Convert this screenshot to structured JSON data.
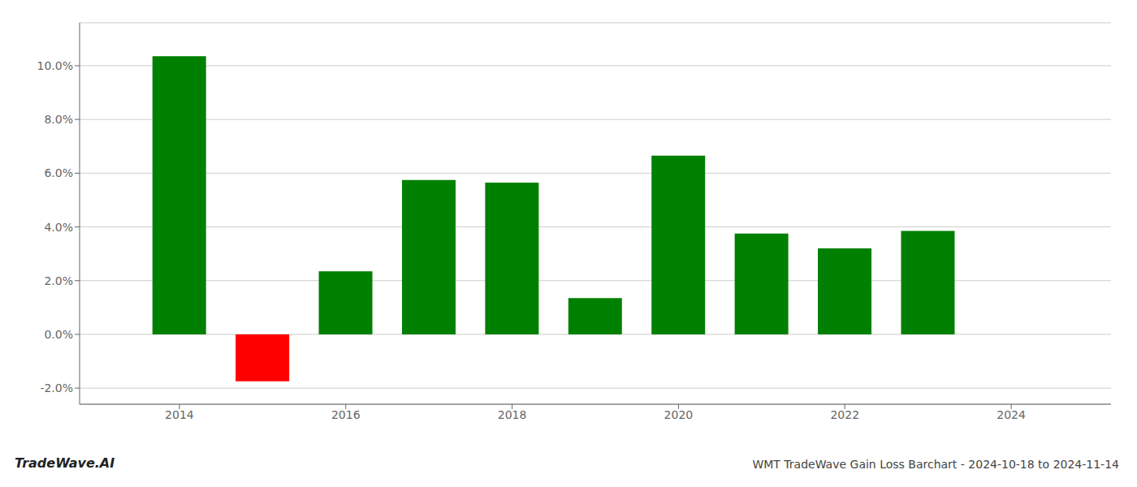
{
  "chart_data": {
    "type": "bar",
    "title": "WMT TradeWave Gain Loss Barchart - 2024-10-18 to 2024-11-14",
    "annotations": [
      "TradeWave.AI"
    ],
    "x": [
      2014,
      2015,
      2016,
      2017,
      2018,
      2019,
      2020,
      2021,
      2022,
      2023
    ],
    "values": [
      0.1035,
      -0.0175,
      0.0235,
      0.0575,
      0.0565,
      0.0135,
      0.0665,
      0.0375,
      0.032,
      0.0385
    ],
    "colors": [
      "#008000",
      "#ff0000",
      "#008000",
      "#008000",
      "#008000",
      "#008000",
      "#008000",
      "#008000",
      "#008000",
      "#008000"
    ],
    "xlim": [
      2012.8,
      2025.2
    ],
    "xticks": [
      2014,
      2016,
      2018,
      2020,
      2022,
      2024
    ],
    "ylim": [
      -0.026,
      0.116
    ],
    "yticks": [
      {
        "value": -0.02,
        "label": "-2.0%"
      },
      {
        "value": 0,
        "label": "0.0%"
      },
      {
        "value": 0.02,
        "label": "2.0%"
      },
      {
        "value": 0.04,
        "label": "4.0%"
      },
      {
        "value": 0.06,
        "label": "6.0%"
      },
      {
        "value": 0.08,
        "label": "8.0%"
      },
      {
        "value": 0.1,
        "label": "10.0%"
      }
    ],
    "grid": true
  }
}
